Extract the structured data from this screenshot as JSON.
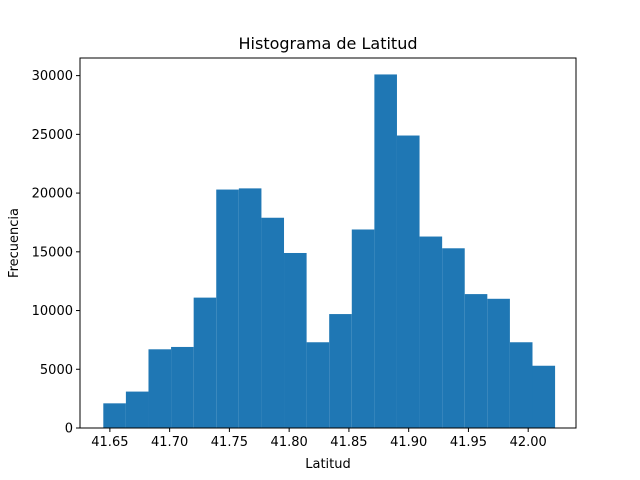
{
  "chart_data": {
    "type": "bar",
    "title": "Histograma de Latitud",
    "xlabel": "Latitud",
    "ylabel": "Frecuencia",
    "bar_color": "#1f77b4",
    "xlim": [
      41.625,
      42.04
    ],
    "ylim": [
      0,
      31500
    ],
    "x_ticks": [
      41.65,
      41.7,
      41.75,
      41.8,
      41.85,
      41.9,
      41.95,
      42.0
    ],
    "x_tick_labels": [
      "41.65",
      "41.70",
      "41.75",
      "41.80",
      "41.85",
      "41.90",
      "41.95",
      "42.00"
    ],
    "y_ticks": [
      0,
      5000,
      10000,
      15000,
      20000,
      25000,
      30000
    ],
    "y_tick_labels": [
      "0",
      "5000",
      "10000",
      "15000",
      "20000",
      "25000",
      "30000"
    ],
    "bin_edges": [
      41.6445,
      41.6634,
      41.6823,
      41.7012,
      41.7201,
      41.739,
      41.7579,
      41.7768,
      41.7957,
      41.8146,
      41.8335,
      41.8524,
      41.8713,
      41.8902,
      41.9091,
      41.928,
      41.9469,
      41.9658,
      41.9847,
      42.0036,
      42.0225
    ],
    "values": [
      2100,
      3100,
      6700,
      6900,
      11100,
      20300,
      20400,
      17900,
      14900,
      7300,
      9700,
      16900,
      30100,
      24900,
      16300,
      15300,
      11400,
      11000,
      7300,
      5300
    ]
  }
}
